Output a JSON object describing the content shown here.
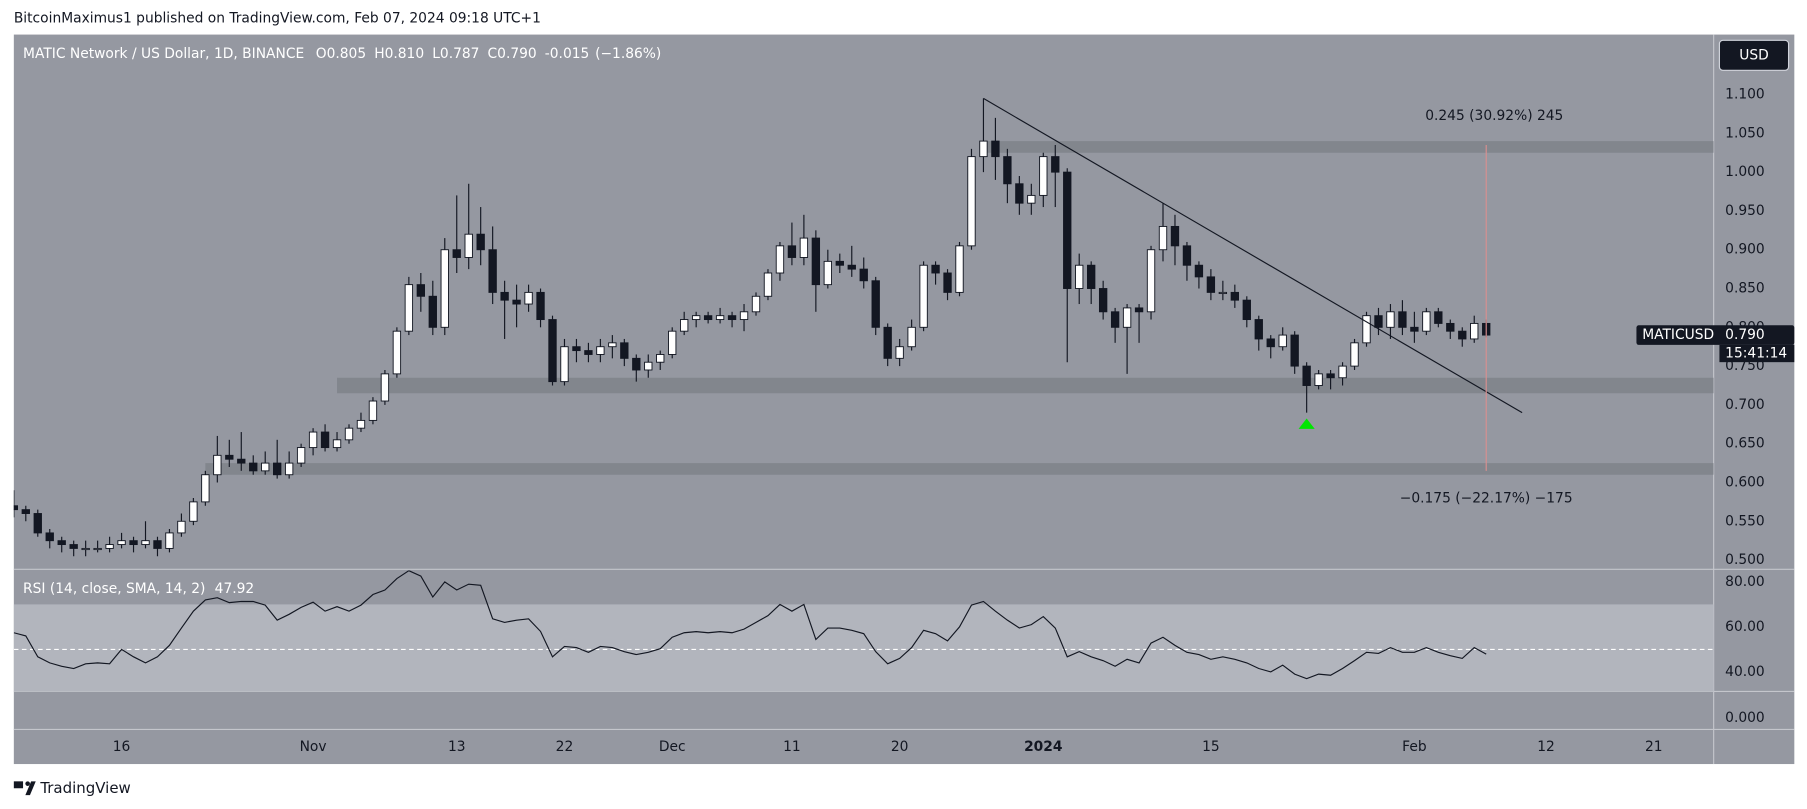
{
  "page": {
    "published": "BitcoinMaximus1 published on TradingView.com, Feb 07, 2024 09:18 UTC+1",
    "footer": "TradingView",
    "currency_button": "USD",
    "pane3_label": "0.000"
  },
  "chart_data": [
    {
      "type": "candlestick",
      "title": "MATIC Network / US Dollar, 1D, BINANCE",
      "symbol": "MATICUSD",
      "legend_values": [
        {
          "key": "O",
          "value": "0.805"
        },
        {
          "key": "H",
          "value": "0.810"
        },
        {
          "key": "L",
          "value": "0.787"
        },
        {
          "key": "C",
          "value": "0.790"
        }
      ],
      "change": "-0.015",
      "change_pct": "(−1.86%)",
      "last_label": "0.790",
      "countdown": "15:41:14",
      "up_color": "#ffffff",
      "down_color": "#131722",
      "x": [
        "2023-10-07",
        "2023-10-08",
        "2023-10-09",
        "2023-10-10",
        "2023-10-11",
        "2023-10-12",
        "2023-10-13",
        "2023-10-14",
        "2023-10-15",
        "2023-10-16",
        "2023-10-17",
        "2023-10-18",
        "2023-10-19",
        "2023-10-20",
        "2023-10-21",
        "2023-10-22",
        "2023-10-23",
        "2023-10-24",
        "2023-10-25",
        "2023-10-26",
        "2023-10-27",
        "2023-10-28",
        "2023-10-29",
        "2023-10-30",
        "2023-10-31",
        "2023-11-01",
        "2023-11-02",
        "2023-11-03",
        "2023-11-04",
        "2023-11-05",
        "2023-11-06",
        "2023-11-07",
        "2023-11-08",
        "2023-11-09",
        "2023-11-10",
        "2023-11-11",
        "2023-11-12",
        "2023-11-13",
        "2023-11-14",
        "2023-11-15",
        "2023-11-16",
        "2023-11-17",
        "2023-11-18",
        "2023-11-19",
        "2023-11-20",
        "2023-11-21",
        "2023-11-22",
        "2023-11-23",
        "2023-11-24",
        "2023-11-25",
        "2023-11-26",
        "2023-11-27",
        "2023-11-28",
        "2023-11-29",
        "2023-11-30",
        "2023-12-01",
        "2023-12-02",
        "2023-12-03",
        "2023-12-04",
        "2023-12-05",
        "2023-12-06",
        "2023-12-07",
        "2023-12-08",
        "2023-12-09",
        "2023-12-10",
        "2023-12-11",
        "2023-12-12",
        "2023-12-13",
        "2023-12-14",
        "2023-12-15",
        "2023-12-16",
        "2023-12-17",
        "2023-12-18",
        "2023-12-19",
        "2023-12-20",
        "2023-12-21",
        "2023-12-22",
        "2023-12-23",
        "2023-12-24",
        "2023-12-25",
        "2023-12-26",
        "2023-12-27",
        "2023-12-28",
        "2023-12-29",
        "2023-12-30",
        "2023-12-31",
        "2024-01-01",
        "2024-01-02",
        "2024-01-03",
        "2024-01-04",
        "2024-01-05",
        "2024-01-06",
        "2024-01-07",
        "2024-01-08",
        "2024-01-09",
        "2024-01-10",
        "2024-01-11",
        "2024-01-12",
        "2024-01-13",
        "2024-01-14",
        "2024-01-15",
        "2024-01-16",
        "2024-01-17",
        "2024-01-18",
        "2024-01-19",
        "2024-01-20",
        "2024-01-21",
        "2024-01-22",
        "2024-01-23",
        "2024-01-24",
        "2024-01-25",
        "2024-01-26",
        "2024-01-27",
        "2024-01-28",
        "2024-01-29",
        "2024-01-30",
        "2024-01-31",
        "2024-02-01",
        "2024-02-02",
        "2024-02-03",
        "2024-02-04",
        "2024-02-05",
        "2024-02-06",
        "2024-02-07"
      ],
      "open": [
        0.57,
        0.565,
        0.56,
        0.535,
        0.525,
        0.52,
        0.515,
        0.515,
        0.515,
        0.52,
        0.525,
        0.52,
        0.525,
        0.515,
        0.535,
        0.55,
        0.575,
        0.61,
        0.635,
        0.63,
        0.625,
        0.615,
        0.625,
        0.61,
        0.625,
        0.645,
        0.665,
        0.645,
        0.655,
        0.67,
        0.68,
        0.705,
        0.74,
        0.795,
        0.855,
        0.84,
        0.8,
        0.9,
        0.89,
        0.92,
        0.9,
        0.845,
        0.835,
        0.83,
        0.845,
        0.81,
        0.73,
        0.775,
        0.77,
        0.765,
        0.775,
        0.78,
        0.76,
        0.745,
        0.755,
        0.765,
        0.795,
        0.81,
        0.815,
        0.81,
        0.815,
        0.81,
        0.82,
        0.84,
        0.87,
        0.905,
        0.89,
        0.915,
        0.855,
        0.885,
        0.88,
        0.875,
        0.86,
        0.8,
        0.76,
        0.775,
        0.8,
        0.88,
        0.87,
        0.845,
        0.905,
        1.02,
        1.04,
        1.02,
        0.985,
        0.96,
        0.97,
        1.02,
        1.0,
        0.85,
        0.88,
        0.85,
        0.82,
        0.8,
        0.825,
        0.82,
        0.9,
        0.93,
        0.905,
        0.88,
        0.865,
        0.845,
        0.845,
        0.835,
        0.81,
        0.785,
        0.775,
        0.79,
        0.75,
        0.725,
        0.74,
        0.735,
        0.75,
        0.78,
        0.815,
        0.8,
        0.82,
        0.8,
        0.795,
        0.82,
        0.805,
        0.795,
        0.785,
        0.805
      ],
      "high": [
        0.59,
        0.57,
        0.565,
        0.54,
        0.53,
        0.525,
        0.525,
        0.525,
        0.53,
        0.535,
        0.53,
        0.55,
        0.53,
        0.54,
        0.56,
        0.58,
        0.615,
        0.66,
        0.655,
        0.665,
        0.635,
        0.64,
        0.655,
        0.64,
        0.65,
        0.67,
        0.675,
        0.665,
        0.675,
        0.69,
        0.71,
        0.745,
        0.8,
        0.865,
        0.87,
        0.86,
        0.915,
        0.97,
        0.985,
        0.955,
        0.93,
        0.86,
        0.855,
        0.855,
        0.85,
        0.815,
        0.785,
        0.785,
        0.78,
        0.785,
        0.79,
        0.785,
        0.765,
        0.765,
        0.77,
        0.8,
        0.82,
        0.82,
        0.82,
        0.825,
        0.82,
        0.83,
        0.845,
        0.875,
        0.91,
        0.935,
        0.945,
        0.925,
        0.9,
        0.895,
        0.905,
        0.89,
        0.865,
        0.805,
        0.785,
        0.81,
        0.885,
        0.885,
        0.875,
        0.91,
        1.03,
        1.095,
        1.07,
        1.03,
        0.995,
        0.985,
        1.025,
        1.035,
        1.005,
        0.895,
        0.885,
        0.86,
        0.825,
        0.83,
        0.83,
        0.905,
        0.96,
        0.945,
        0.91,
        0.885,
        0.875,
        0.86,
        0.855,
        0.84,
        0.815,
        0.79,
        0.8,
        0.795,
        0.755,
        0.745,
        0.745,
        0.755,
        0.785,
        0.82,
        0.825,
        0.83,
        0.835,
        0.82,
        0.825,
        0.825,
        0.81,
        0.8,
        0.815,
        0.81
      ],
      "low": [
        0.555,
        0.55,
        0.53,
        0.515,
        0.51,
        0.505,
        0.505,
        0.51,
        0.51,
        0.515,
        0.51,
        0.515,
        0.505,
        0.51,
        0.53,
        0.545,
        0.57,
        0.6,
        0.62,
        0.615,
        0.61,
        0.61,
        0.605,
        0.605,
        0.62,
        0.635,
        0.64,
        0.64,
        0.65,
        0.665,
        0.675,
        0.7,
        0.735,
        0.79,
        0.82,
        0.79,
        0.79,
        0.87,
        0.875,
        0.88,
        0.83,
        0.785,
        0.8,
        0.82,
        0.8,
        0.725,
        0.725,
        0.755,
        0.755,
        0.755,
        0.76,
        0.75,
        0.73,
        0.735,
        0.745,
        0.76,
        0.79,
        0.8,
        0.805,
        0.805,
        0.8,
        0.795,
        0.815,
        0.835,
        0.86,
        0.88,
        0.88,
        0.82,
        0.85,
        0.87,
        0.865,
        0.85,
        0.79,
        0.75,
        0.75,
        0.77,
        0.795,
        0.855,
        0.835,
        0.84,
        0.9,
        1.0,
        0.99,
        0.96,
        0.945,
        0.945,
        0.955,
        0.955,
        0.755,
        0.83,
        0.83,
        0.81,
        0.78,
        0.74,
        0.78,
        0.81,
        0.885,
        0.88,
        0.86,
        0.85,
        0.835,
        0.835,
        0.825,
        0.8,
        0.77,
        0.76,
        0.77,
        0.74,
        0.69,
        0.72,
        0.72,
        0.725,
        0.745,
        0.775,
        0.79,
        0.785,
        0.79,
        0.78,
        0.79,
        0.8,
        0.785,
        0.775,
        0.78,
        0.787
      ],
      "close": [
        0.565,
        0.56,
        0.535,
        0.525,
        0.52,
        0.515,
        0.515,
        0.515,
        0.52,
        0.525,
        0.52,
        0.525,
        0.515,
        0.535,
        0.55,
        0.575,
        0.61,
        0.635,
        0.63,
        0.625,
        0.615,
        0.625,
        0.61,
        0.625,
        0.645,
        0.665,
        0.645,
        0.655,
        0.67,
        0.68,
        0.705,
        0.74,
        0.795,
        0.855,
        0.84,
        0.8,
        0.9,
        0.89,
        0.92,
        0.9,
        0.845,
        0.835,
        0.83,
        0.845,
        0.81,
        0.73,
        0.775,
        0.77,
        0.765,
        0.775,
        0.78,
        0.76,
        0.745,
        0.755,
        0.765,
        0.795,
        0.81,
        0.815,
        0.81,
        0.815,
        0.81,
        0.82,
        0.84,
        0.87,
        0.905,
        0.89,
        0.915,
        0.855,
        0.885,
        0.88,
        0.875,
        0.86,
        0.8,
        0.76,
        0.775,
        0.8,
        0.88,
        0.87,
        0.845,
        0.905,
        1.02,
        1.04,
        1.02,
        0.985,
        0.96,
        0.97,
        1.02,
        1.0,
        0.85,
        0.88,
        0.85,
        0.82,
        0.8,
        0.825,
        0.82,
        0.9,
        0.93,
        0.905,
        0.88,
        0.865,
        0.845,
        0.845,
        0.835,
        0.81,
        0.785,
        0.775,
        0.79,
        0.75,
        0.725,
        0.74,
        0.735,
        0.75,
        0.78,
        0.815,
        0.8,
        0.82,
        0.8,
        0.795,
        0.82,
        0.805,
        0.795,
        0.785,
        0.805,
        0.79
      ],
      "xlim": [
        "2023-10-07",
        "2024-02-26"
      ],
      "xticks": [
        {
          "value": "2023-10-16",
          "label": "16"
        },
        {
          "value": "2023-11-01",
          "label": "Nov"
        },
        {
          "value": "2023-11-13",
          "label": "13"
        },
        {
          "value": "2023-11-22",
          "label": "22"
        },
        {
          "value": "2023-12-01",
          "label": "Dec"
        },
        {
          "value": "2023-12-11",
          "label": "11"
        },
        {
          "value": "2023-12-20",
          "label": "20"
        },
        {
          "value": "2024-01-01",
          "label": "2024"
        },
        {
          "value": "2024-01-15",
          "label": "15"
        },
        {
          "value": "2024-02-01",
          "label": "Feb"
        },
        {
          "value": "2024-02-12",
          "label": "12"
        },
        {
          "value": "2024-02-21",
          "label": "21"
        }
      ],
      "ylim": [
        0.4896,
        1.1773
      ],
      "yticks": [
        {
          "value": 0.5,
          "label": "0.500"
        },
        {
          "value": 0.55,
          "label": "0.550"
        },
        {
          "value": 0.6,
          "label": "0.600"
        },
        {
          "value": 0.65,
          "label": "0.650"
        },
        {
          "value": 0.7,
          "label": "0.700"
        },
        {
          "value": 0.75,
          "label": "0.750"
        },
        {
          "value": 0.8,
          "label": "0.800"
        },
        {
          "value": 0.85,
          "label": "0.850"
        },
        {
          "value": 0.9,
          "label": "0.900"
        },
        {
          "value": 0.95,
          "label": "0.950"
        },
        {
          "value": 1.0,
          "label": "1.000"
        },
        {
          "value": 1.05,
          "label": "1.050"
        },
        {
          "value": 1.1,
          "label": "1.100"
        }
      ],
      "zones": [
        {
          "from": 1.025,
          "to": 1.04,
          "start": "2023-12-27",
          "color": "#7f828a"
        },
        {
          "from": 0.715,
          "to": 0.735,
          "start": "2023-11-03",
          "color": "#7f828a"
        },
        {
          "from": 0.61,
          "to": 0.625,
          "start": "2023-10-23",
          "color": "#7f828a"
        }
      ],
      "trendline": {
        "x": [
          "2023-12-27",
          "2024-02-10"
        ],
        "y": [
          1.095,
          0.69
        ],
        "color": "#131722"
      },
      "measure": {
        "x": "2024-02-07",
        "y": [
          1.035,
          0.615
        ],
        "up_label": "0.245 (30.92%) 245",
        "down_label": "−0.175 (−22.17%) −175",
        "color": "#d98f8f"
      },
      "marker": {
        "x": "2024-01-23",
        "y": 0.675,
        "color": "#00e600"
      }
    },
    {
      "type": "line",
      "title": "RSI (14, close, SMA, 14, 2)",
      "color": "#131722",
      "series": [
        {
          "name": "RSI",
          "values": [
            57.4,
            56,
            46.7,
            44,
            42.5,
            41.5,
            43.6,
            44,
            43.6,
            50,
            46.7,
            44,
            46.7,
            51.8,
            59.5,
            67,
            72,
            73,
            70.8,
            71.3,
            71.3,
            69.7,
            63,
            65.6,
            68.7,
            71,
            67,
            69,
            67,
            69.7,
            74.4,
            76.4,
            81.5,
            85,
            82.6,
            73.3,
            80,
            76.4,
            79,
            78.5,
            63.6,
            62,
            63,
            63.6,
            58,
            46.7,
            51.3,
            50.8,
            48.7,
            51.3,
            50.8,
            49,
            47.7,
            48.7,
            50.3,
            55.4,
            57.4,
            57.9,
            57.4,
            57.9,
            57.4,
            59,
            62,
            65,
            70,
            67,
            70,
            54.4,
            59.5,
            59.5,
            58.5,
            57,
            49,
            43.6,
            46,
            50.8,
            58.5,
            57,
            53.8,
            60,
            69.7,
            71.3,
            67,
            63,
            59.5,
            61,
            64.6,
            59.5,
            46.7,
            49,
            46.7,
            45,
            42.5,
            45.6,
            44,
            52.8,
            55.4,
            51.8,
            48.7,
            47.7,
            45.6,
            46.7,
            45.6,
            44,
            41.5,
            40,
            43,
            39,
            37,
            39,
            38.5,
            41.5,
            45,
            48.7,
            48.2,
            50.8,
            48.7,
            48.7,
            50.8,
            48.7,
            47.2,
            46,
            50.8,
            47.92
          ]
        }
      ],
      "ylim": [
        31.3,
        85.1
      ],
      "yticks": [
        {
          "value": 40,
          "label": "40.00"
        },
        {
          "value": 60,
          "label": "60.00"
        },
        {
          "value": 80,
          "label": "80.00"
        }
      ],
      "band": [
        30,
        70
      ],
      "midline": 50
    }
  ]
}
